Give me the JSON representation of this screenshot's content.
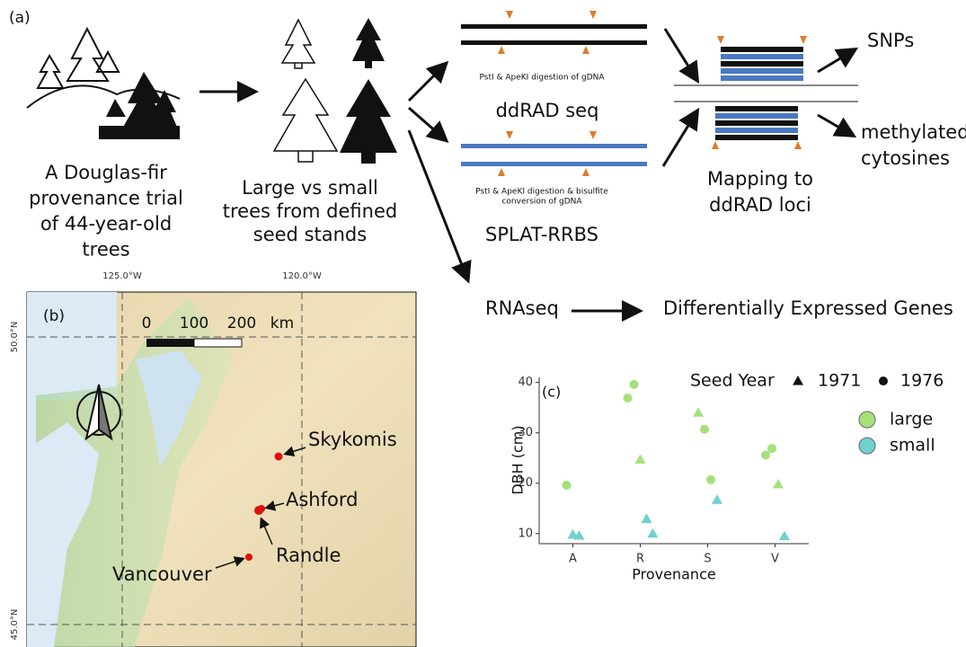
{
  "panel_a": {
    "label": "(a)",
    "trial": {
      "lines": [
        "A Douglas-fir",
        "provenance trial",
        "of 44-year-old",
        "trees"
      ]
    },
    "trees": {
      "lines": [
        "Large vs small",
        "trees from defined",
        "seed stands"
      ]
    },
    "ddrad_note": "PstI & ApeKI digestion of gDNA",
    "ddrad": "ddRAD seq",
    "splat_note": {
      "lines": [
        "PstI & ApeKI digestion & bisulfite",
        "conversion of gDNA"
      ]
    },
    "splat": "SPLAT-RRBS",
    "mapping": {
      "lines": [
        "Mapping to",
        "ddRAD loci"
      ]
    },
    "snps": "SNPs",
    "methyl": {
      "lines": [
        "methylated",
        "cytosines"
      ]
    },
    "rnaseq": "RNAseq",
    "deg": "Differentially Expressed Genes"
  },
  "panel_b": {
    "label": "(b)",
    "lon_ticks": [
      "125.0°W",
      "120.0°W"
    ],
    "lat_ticks": [
      "50.0°N",
      "45.0°N"
    ],
    "scale": [
      "0",
      "100",
      "200",
      "km"
    ],
    "sites": [
      "Skykomis",
      "Ashford",
      "Randle",
      "Vancouver"
    ]
  },
  "chart_data": {
    "type": "scatter",
    "label": "(c)",
    "x_label": "Provenance",
    "y_label": "DBH (cm)",
    "categories": [
      "A",
      "R",
      "S",
      "V"
    ],
    "ylim": [
      8,
      41
    ],
    "yticks": [
      10,
      20,
      30,
      40
    ],
    "legend_title": "Seed Year",
    "shapes": [
      {
        "name": "1971",
        "marker": "triangle"
      },
      {
        "name": "1976",
        "marker": "circle"
      }
    ],
    "series": [
      {
        "name": "large",
        "color": "#a6e07a",
        "x": [
          "A",
          "R",
          "R",
          "R",
          "S",
          "S",
          "S",
          "V",
          "V",
          "V"
        ],
        "marker": [
          "circle",
          "circle",
          "circle",
          "triangle",
          "triangle",
          "circle",
          "circle",
          "circle",
          "circle",
          "triangle"
        ],
        "values": [
          19.6,
          36.9,
          39.6,
          24.7,
          34,
          30.7,
          20.7,
          25.6,
          26.9,
          19.8
        ]
      },
      {
        "name": "small",
        "color": "#6fd0d0",
        "x": [
          "A",
          "A",
          "R",
          "R",
          "S",
          "V"
        ],
        "marker": [
          "triangle",
          "triangle",
          "triangle",
          "triangle",
          "triangle",
          "triangle"
        ],
        "values": [
          9.8,
          9.6,
          12.9,
          10,
          16.7,
          9.5
        ]
      }
    ]
  }
}
